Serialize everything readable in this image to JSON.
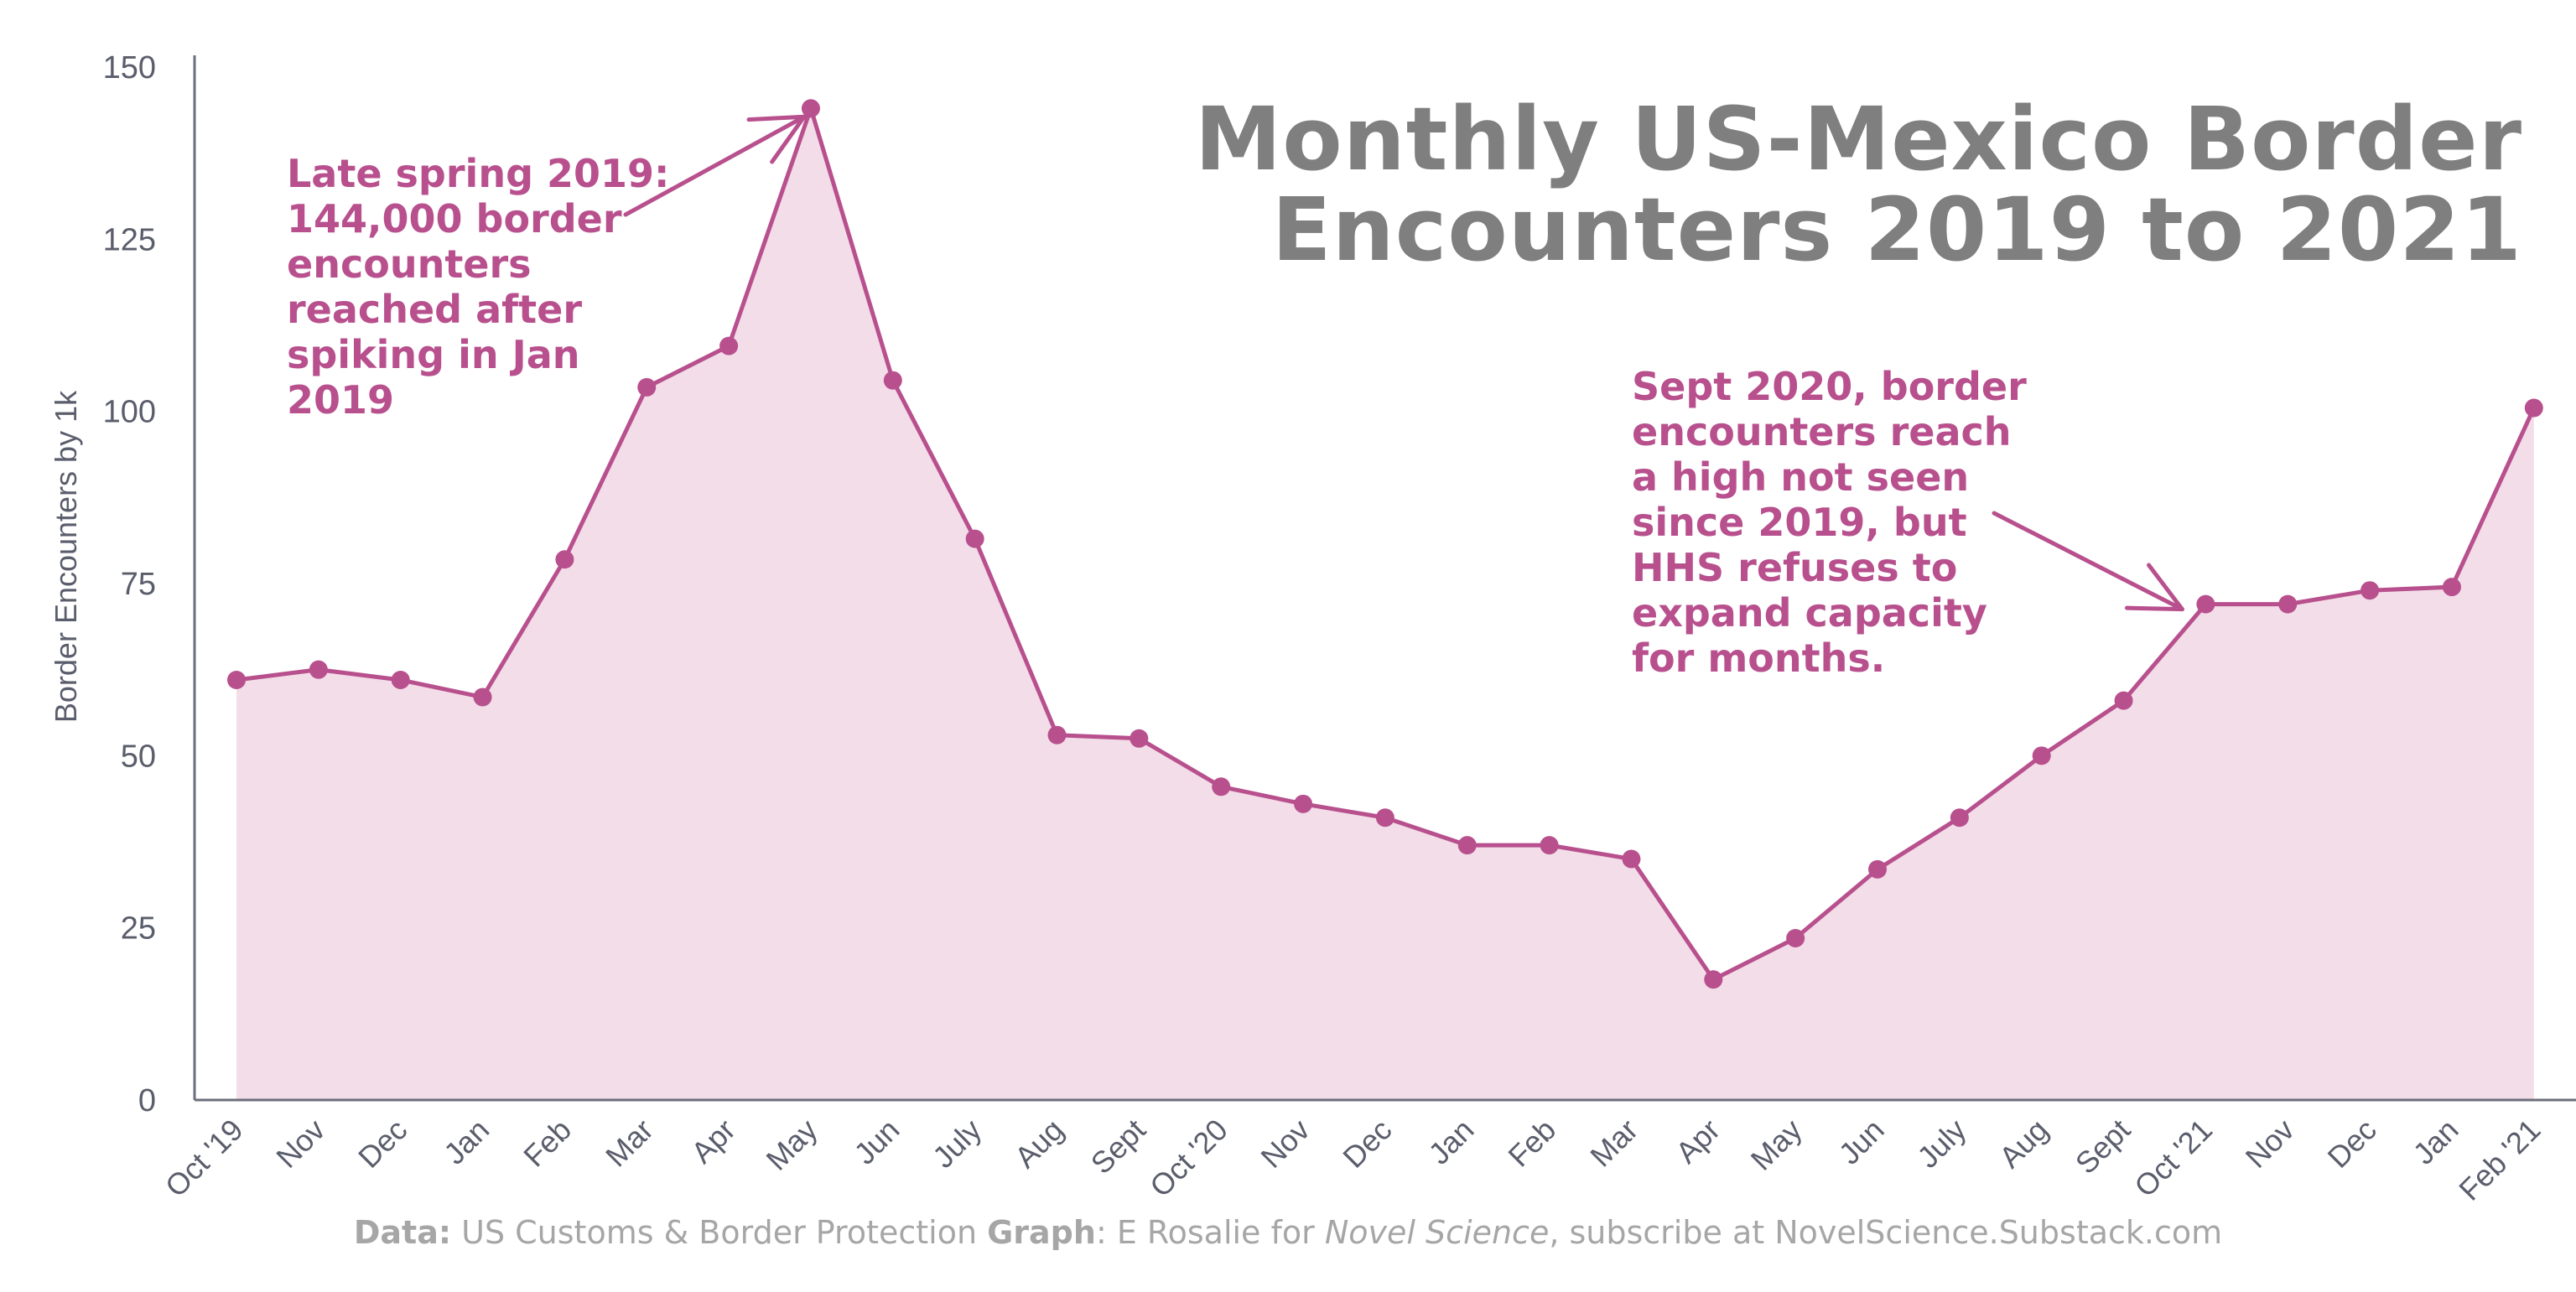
{
  "chart_data": {
    "type": "area",
    "title_lines": [
      "Monthly US-Mexico Border",
      "Encounters 2019 to 2021"
    ],
    "ylabel": "Border Encounters by 1k",
    "xlabel": "",
    "ylim": [
      0,
      150
    ],
    "yticks": [
      0,
      25,
      50,
      75,
      100,
      125,
      150
    ],
    "grid": false,
    "categories": [
      "Oct '19",
      "Nov",
      "Dec",
      "Jan",
      "Feb",
      "Mar",
      "Apr",
      "May",
      "Jun",
      "July",
      "Aug",
      "Sept",
      "Oct '20",
      "Nov",
      "Dec",
      "Jan",
      "Feb",
      "Mar",
      "Apr",
      "May",
      "Jun",
      "July",
      "Aug",
      "Sept",
      "Oct '21",
      "Nov",
      "Dec",
      "Jan",
      "Feb '21"
    ],
    "values": [
      61,
      62.5,
      61,
      58.5,
      78.5,
      103.5,
      109.5,
      144,
      104.5,
      81.5,
      53,
      52.5,
      45.5,
      43,
      41,
      37,
      37,
      35,
      17.5,
      23.5,
      33.5,
      41,
      50,
      58,
      72,
      72,
      74,
      74.5,
      100.5
    ],
    "colors": {
      "line": "#b8508e",
      "fill": "#f3dde8",
      "axis": "#6b6e7c",
      "tick_text": "#5a5d6b",
      "title": "#7f7f7f",
      "footer": "#a6a6a6"
    },
    "annotations": [
      {
        "text": "Late spring 2019:\n144,000 border\nencounters\nreached after\nspiking in Jan\n2019",
        "points_to": "May"
      },
      {
        "text": "Sept 2020, border\nencounters reach\na high not seen\nsince 2019, but\nHHS refuses to\nexpand capacity\nfor months.",
        "points_to": "Oct '21"
      }
    ]
  },
  "footer": {
    "data_label": "Data:",
    "data_text": " US Customs & Border Protection  ",
    "graph_label": "Graph",
    "graph_text": ": E Rosalie for ",
    "publication": "Novel Science",
    "subscribe_text": ", subscribe at NovelScience.Substack.com"
  }
}
